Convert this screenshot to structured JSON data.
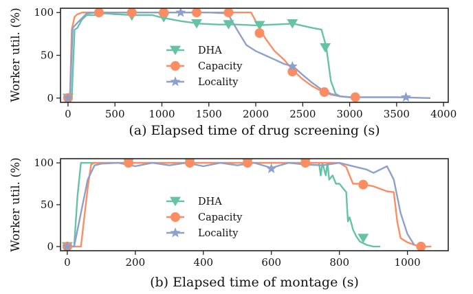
{
  "colors": {
    "dha": "#66c2a5",
    "capacity": "#fc8d62",
    "locality": "#8da0cb"
  },
  "chart_data": [
    {
      "type": "line",
      "xlabel": "(a) Elapsed time of drug screening (s)",
      "ylabel": "Worker util. (%)",
      "xlim": [
        -80,
        4050
      ],
      "ylim": [
        -5,
        105
      ],
      "xticks": [
        0,
        500,
        1000,
        1500,
        2000,
        2500,
        3000,
        3500,
        4000
      ],
      "yticks": [
        0,
        50,
        100
      ],
      "legend": {
        "placement": "center",
        "entries": [
          "DHA",
          "Capacity",
          "Locality"
        ]
      },
      "series": [
        {
          "name": "DHA",
          "color": "#66c2a5",
          "marker": "triangle-down",
          "x": [
            0,
            40,
            70,
            100,
            150,
            200,
            300,
            400,
            500,
            700,
            900,
            1000,
            1200,
            1400,
            1600,
            1800,
            2000,
            2200,
            2400,
            2600,
            2700,
            2750,
            2800,
            2850,
            2900,
            3000
          ],
          "y": [
            0,
            0,
            80,
            82,
            92,
            97,
            97,
            99,
            98,
            97,
            97,
            94,
            90,
            87,
            86,
            86,
            85,
            86,
            87,
            82,
            80,
            60,
            20,
            5,
            2,
            1
          ],
          "markers_x": [
            0,
            680,
            1020,
            1370,
            1710,
            2040,
            2390,
            2740
          ],
          "markers_y": [
            0,
            96,
            94,
            87,
            86,
            85,
            87,
            59
          ]
        },
        {
          "name": "Capacity",
          "color": "#fc8d62",
          "marker": "circle",
          "x": [
            0,
            20,
            40,
            70,
            100,
            150,
            200,
            300,
            500,
            1000,
            1500,
            1900,
            1950,
            2000,
            2100,
            2200,
            2300,
            2400,
            2500,
            2600,
            2700,
            2800,
            2900,
            3000,
            3050
          ],
          "y": [
            0,
            0,
            80,
            95,
            98,
            100,
            100,
            100,
            100,
            100,
            100,
            100,
            100,
            90,
            70,
            55,
            45,
            32,
            22,
            14,
            8,
            4,
            2,
            1,
            1
          ],
          "markers_x": [
            0,
            330,
            680,
            1020,
            1370,
            1710,
            2040,
            2390,
            2730,
            3060
          ],
          "markers_y": [
            0,
            100,
            100,
            100,
            100,
            100,
            76,
            31,
            7,
            1
          ]
        },
        {
          "name": "Locality",
          "color": "#8da0cb",
          "marker": "star",
          "x": [
            0,
            20,
            50,
            100,
            200,
            300,
            500,
            1000,
            1500,
            1700,
            1800,
            1900,
            2000,
            2100,
            2200,
            2300,
            2400,
            2500,
            2600,
            2700,
            2800,
            2900,
            3000,
            3200,
            3500,
            3860
          ],
          "y": [
            0,
            0,
            82,
            88,
            99,
            100,
            100,
            100,
            100,
            99,
            80,
            62,
            55,
            50,
            45,
            40,
            37,
            27,
            18,
            10,
            5,
            2,
            1,
            1,
            1,
            0
          ],
          "markers_x": [
            0,
            1200,
            2390,
            3600
          ],
          "markers_y": [
            0,
            100,
            37,
            1
          ]
        }
      ]
    },
    {
      "type": "line",
      "xlabel": "(b) Elapsed time of montage (s)",
      "ylabel": "Worker util. (%)",
      "xlim": [
        -20,
        1120
      ],
      "ylim": [
        -5,
        105
      ],
      "xticks": [
        0,
        200,
        400,
        600,
        800,
        1000
      ],
      "yticks": [
        0,
        50,
        100
      ],
      "legend": {
        "placement": "center",
        "entries": [
          "DHA",
          "Capacity",
          "Locality"
        ]
      },
      "series": [
        {
          "name": "DHA",
          "color": "#66c2a5",
          "marker": "triangle-down",
          "x": [
            0,
            20,
            30,
            40,
            100,
            200,
            400,
            600,
            740,
            745,
            750,
            760,
            765,
            770,
            780,
            790,
            800,
            810,
            820,
            825,
            830,
            835,
            840,
            850,
            860,
            880,
            900,
            920
          ],
          "y": [
            0,
            0,
            60,
            100,
            100,
            100,
            100,
            100,
            100,
            85,
            100,
            85,
            100,
            80,
            85,
            75,
            75,
            70,
            65,
            30,
            35,
            28,
            20,
            12,
            6,
            2,
            0,
            0
          ],
          "markers_x": [
            0,
            180,
            360,
            530,
            700,
            870
          ],
          "markers_y": [
            0,
            100,
            100,
            100,
            100,
            10
          ]
        },
        {
          "name": "Capacity",
          "color": "#fc8d62",
          "marker": "circle",
          "x": [
            0,
            40,
            60,
            70,
            80,
            100,
            200,
            400,
            600,
            800,
            820,
            830,
            840,
            860,
            900,
            940,
            960,
            970,
            980,
            1000,
            1020,
            1040,
            1070
          ],
          "y": [
            0,
            0,
            70,
            98,
            100,
            100,
            100,
            100,
            100,
            100,
            95,
            85,
            75,
            75,
            72,
            66,
            65,
            30,
            10,
            5,
            2,
            0,
            0
          ],
          "markers_x": [
            0,
            180,
            360,
            530,
            700,
            870,
            1040
          ],
          "markers_y": [
            0,
            100,
            100,
            100,
            100,
            74,
            0
          ]
        },
        {
          "name": "Locality",
          "color": "#8da0cb",
          "marker": "star",
          "x": [
            0,
            20,
            40,
            60,
            80,
            100,
            150,
            200,
            250,
            300,
            350,
            400,
            450,
            500,
            550,
            600,
            650,
            700,
            750,
            800,
            850,
            880,
            900,
            940,
            960,
            980,
            1000,
            1020
          ],
          "y": [
            0,
            0,
            40,
            80,
            97,
            99,
            100,
            96,
            100,
            97,
            100,
            96,
            100,
            97,
            100,
            94,
            100,
            98,
            97,
            100,
            95,
            92,
            88,
            96,
            80,
            40,
            15,
            2
          ],
          "markers_x": [
            0,
            600
          ],
          "markers_y": [
            0,
            93
          ]
        }
      ]
    }
  ]
}
